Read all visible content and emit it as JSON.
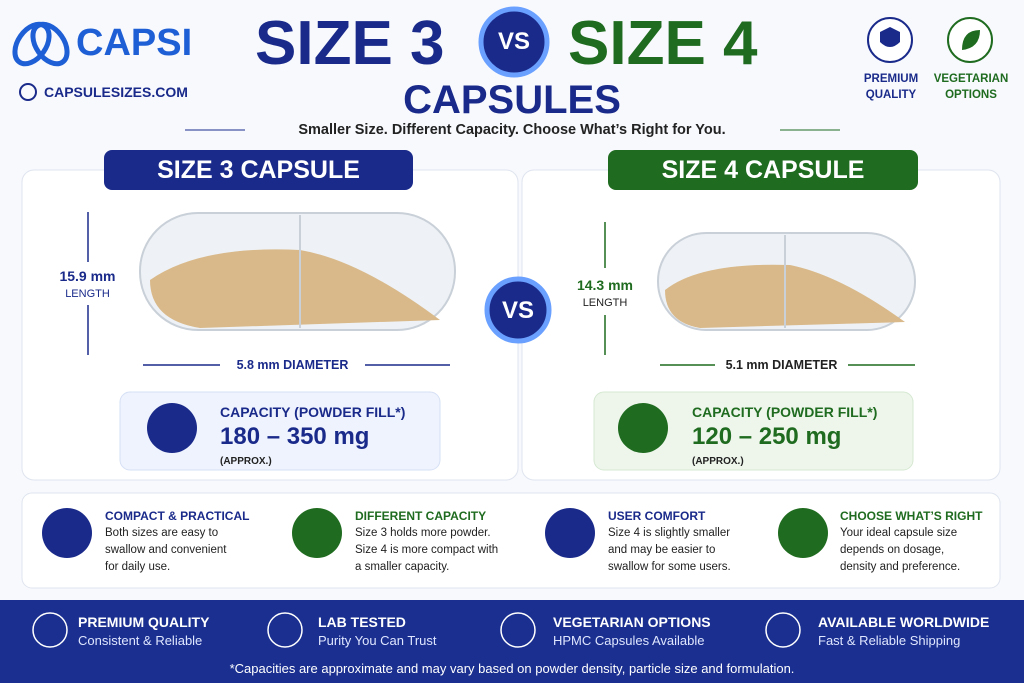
{
  "brand": {
    "name": "CAPSI",
    "url": "CAPSULESIZES.COM"
  },
  "header": {
    "left": "SIZE 3",
    "vs": "VS",
    "right": "SIZE 4",
    "title": "CAPSULES",
    "subtitle": "Smaller Size. Different Capacity. Choose What’s Right for You."
  },
  "badges": [
    "PREMIUM QUALITY",
    "VEGETARIAN OPTIONS"
  ],
  "panels": [
    {
      "heading": "SIZE 3 CAPSULE",
      "length": "15.9 mm",
      "length_label": "LENGTH",
      "diameter": "5.8 mm DIAMETER",
      "capacity_label": "CAPACITY (POWDER FILL*)",
      "capacity": "180 – 350 mg",
      "approx": "(APPROX.)"
    },
    {
      "heading": "SIZE 4 CAPSULE",
      "length": "14.3 mm",
      "length_label": "LENGTH",
      "diameter": "5.1 mm DIAMETER",
      "capacity_label": "CAPACITY (POWDER FILL*)",
      "capacity": "120 – 250 mg",
      "approx": "(APPROX.)"
    }
  ],
  "vs_middle": "VS",
  "features": [
    {
      "title": "COMPACT & PRACTICAL",
      "text": "Both sizes are easy to swallow and convenient for daily use."
    },
    {
      "title": "DIFFERENT CAPACITY",
      "text": "Size 3 holds more powder. Size 4 is more compact with a smaller capacity."
    },
    {
      "title": "USER COMFORT",
      "text": "Size 4 is slightly smaller and may be easier to swallow for some users."
    },
    {
      "title": "CHOOSE WHAT’S RIGHT",
      "text": "Your ideal capsule size depends on dosage, density and preference."
    }
  ],
  "footer": {
    "items": [
      {
        "title": "PREMIUM QUALITY",
        "text": "Consistent & Reliable"
      },
      {
        "title": "LAB TESTED",
        "text": "Purity You Can Trust"
      },
      {
        "title": "VEGETARIAN OPTIONS",
        "text": "HPMC Capsules Available"
      },
      {
        "title": "AVAILABLE WORLDWIDE",
        "text": "Fast & Reliable Shipping"
      }
    ],
    "note": "*Capacities are approximate and may vary based on powder density, particle size and formulation."
  }
}
